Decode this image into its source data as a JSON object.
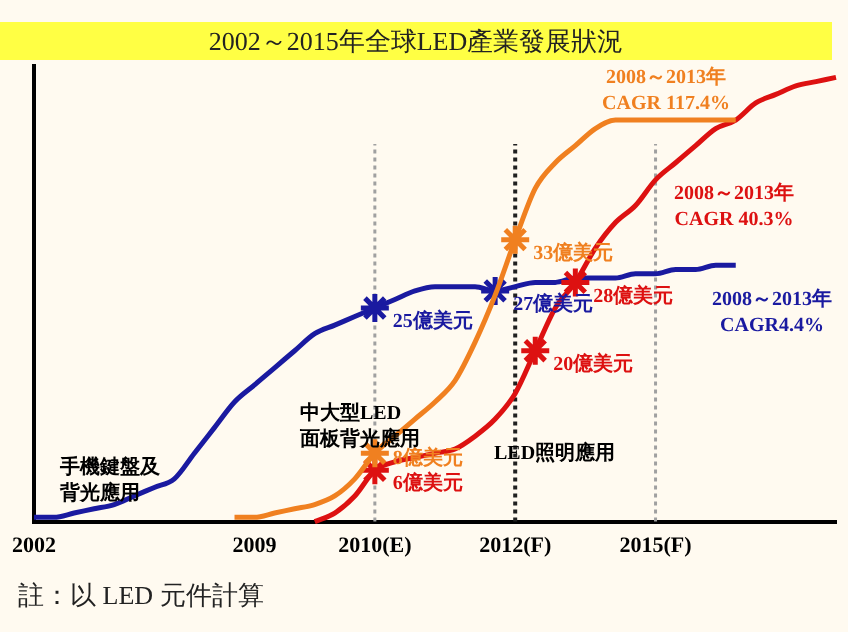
{
  "chart_data": {
    "type": "line",
    "title": "2002～2015年全球LED產業發展狀況",
    "categories": [
      "2002",
      null,
      null,
      null,
      null,
      null,
      null,
      null,
      null,
      null,
      null,
      "2009",
      null,
      null,
      null,
      null,
      null,
      "2010(E)",
      null,
      null,
      null,
      null,
      null,
      null,
      "2012(F)",
      null,
      null,
      null,
      null,
      null,
      null,
      "2015(F)",
      null,
      null,
      null,
      null,
      null,
      null,
      null,
      null,
      null
    ],
    "series": [
      {
        "color": "#f08020",
        "values": [
          null,
          null,
          null,
          null,
          null,
          null,
          null,
          null,
          null,
          null,
          0.5,
          0.5,
          1,
          1.5,
          2,
          3,
          5,
          8,
          10,
          12,
          14,
          16.5,
          21,
          26.5,
          33,
          39,
          42,
          44,
          46,
          47,
          47,
          47,
          47,
          47,
          47,
          47,
          null,
          null,
          null,
          null,
          null
        ],
        "value_labels": [
          null,
          null,
          null,
          null,
          null,
          null,
          null,
          null,
          null,
          null,
          null,
          null,
          null,
          null,
          null,
          null,
          null,
          "8億美元",
          null,
          null,
          null,
          null,
          null,
          null,
          "33億美元",
          null,
          null,
          null,
          null,
          null,
          null,
          null,
          null,
          null,
          null,
          null,
          null,
          null,
          null,
          null,
          null
        ]
      },
      {
        "color": "#dd1111",
        "values": [
          null,
          null,
          null,
          null,
          null,
          null,
          null,
          null,
          null,
          null,
          null,
          null,
          null,
          null,
          0,
          1,
          3,
          6,
          7,
          7.5,
          8,
          8.5,
          10,
          12,
          15,
          20,
          25,
          28,
          32,
          35,
          37,
          40,
          42,
          44,
          46,
          47,
          49,
          50,
          51,
          51.5,
          52
        ],
        "value_labels": [
          null,
          null,
          null,
          null,
          null,
          null,
          null,
          null,
          null,
          null,
          null,
          null,
          null,
          null,
          null,
          null,
          null,
          "6億美元",
          null,
          null,
          null,
          null,
          null,
          null,
          null,
          "20億美元",
          null,
          "28億美元",
          null,
          null,
          null,
          null,
          null,
          null,
          null,
          null,
          null,
          null,
          null,
          null,
          null
        ]
      },
      {
        "color": "#1a1aa0",
        "values": [
          0.5,
          0.5,
          1,
          1.5,
          2,
          3,
          4,
          5,
          8,
          11,
          14,
          16,
          18,
          20,
          22,
          23,
          24,
          25,
          26,
          27,
          27.5,
          27.5,
          27.5,
          27,
          27.5,
          28,
          28,
          28.5,
          28.5,
          28.5,
          29,
          29,
          29.5,
          29.5,
          30,
          30,
          null,
          null,
          null,
          null,
          null
        ],
        "value_labels": [
          null,
          null,
          null,
          null,
          null,
          null,
          null,
          null,
          null,
          null,
          null,
          null,
          null,
          null,
          null,
          null,
          null,
          "25億美元",
          null,
          null,
          null,
          null,
          null,
          "27億美元",
          null,
          null,
          null,
          null,
          null,
          null,
          null,
          null,
          null,
          null,
          null,
          null,
          null,
          null,
          null,
          null,
          null
        ]
      }
    ],
    "grid": false,
    "legend": false,
    "ref_lines": [
      {
        "axis": "x",
        "value": "2010(E)",
        "color": "#a0a0a0",
        "line_style": "dotted"
      },
      {
        "axis": "x",
        "value": "2012(F)",
        "color": "#202020",
        "line_style": "dotted"
      },
      {
        "axis": "x",
        "value": "2015(F)",
        "color": "#a0a0a0",
        "line_style": "dotted"
      }
    ],
    "annotations": [
      "2008～2013年\nCAGR 117.4%",
      "2008～2013年\nCAGR 40.3%",
      "2008～2013年\nCAGR4.4%",
      "手機鍵盤及背光應用",
      "中大型LED面板背光應用",
      "LED照明應用",
      "註：以 LED 元件計算"
    ]
  }
}
